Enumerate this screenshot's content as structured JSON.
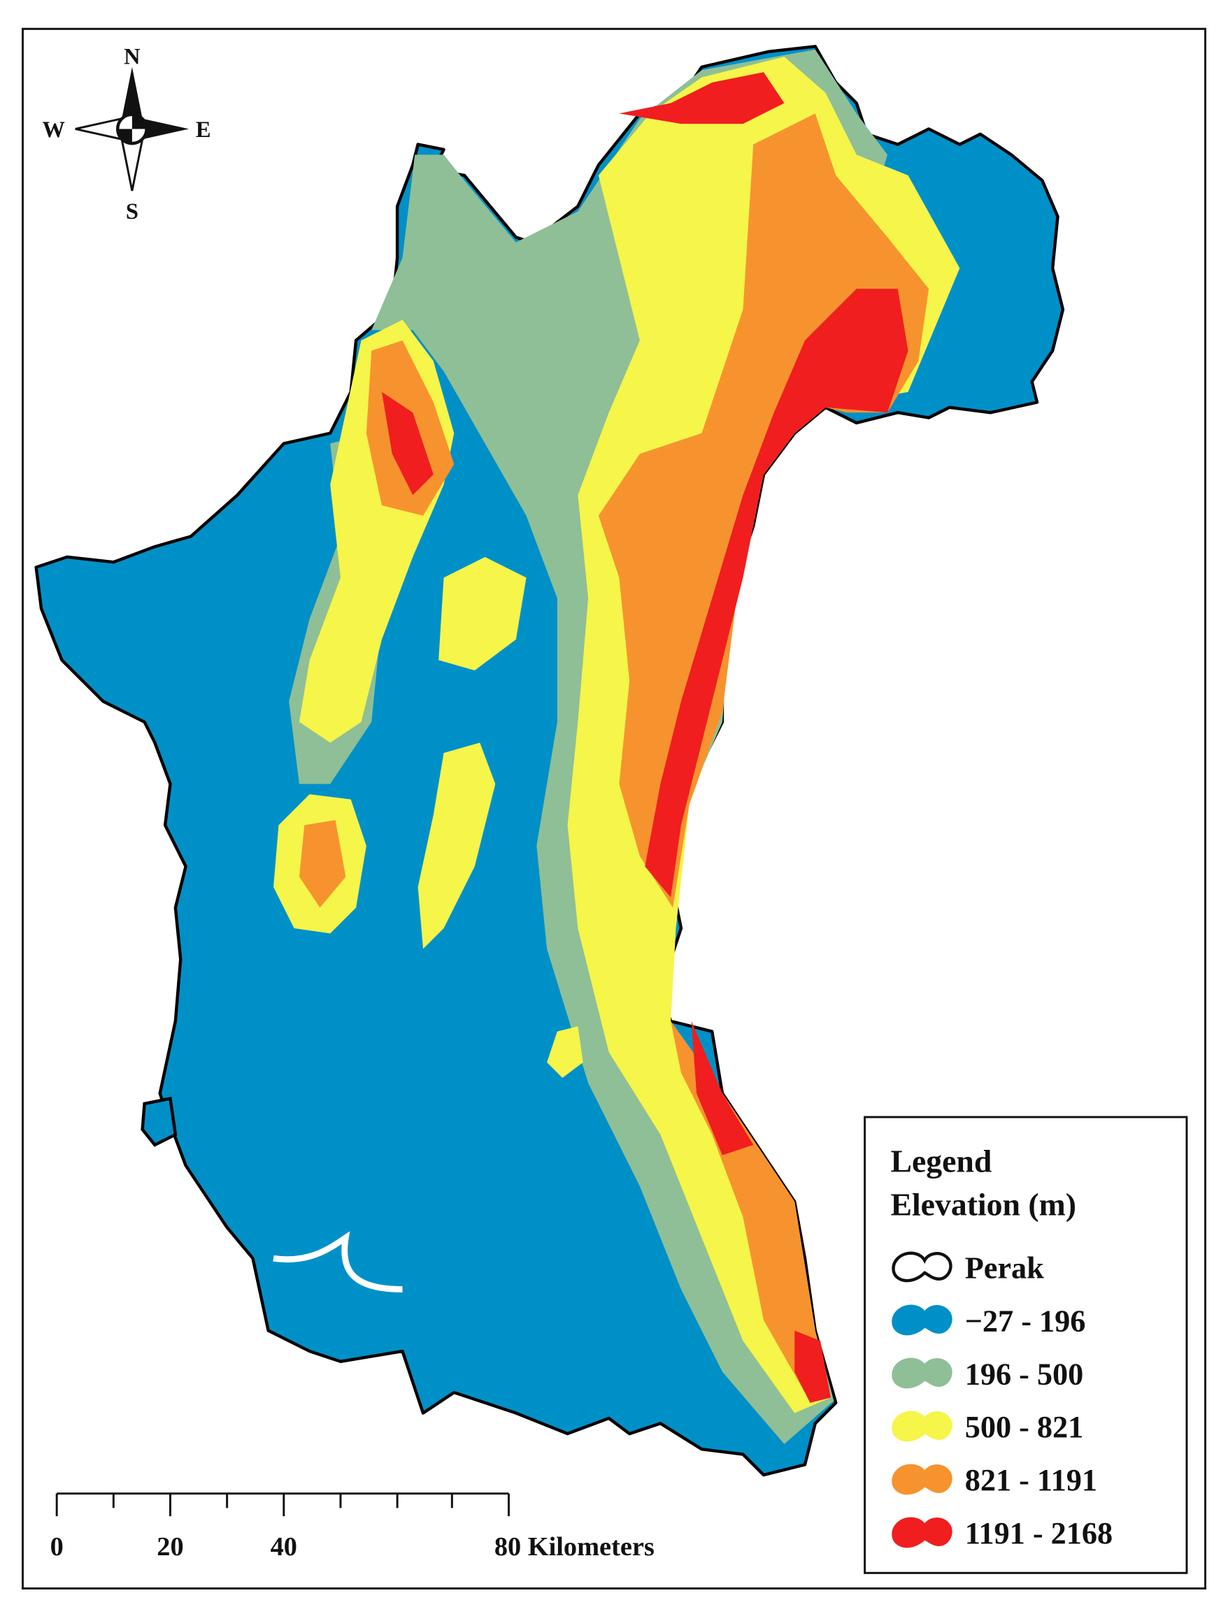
{
  "compass": {
    "north": "N",
    "south": "S",
    "west": "W",
    "east": "E"
  },
  "legend": {
    "title": "Legend",
    "subtitle": "Elevation (m)",
    "items": [
      {
        "label": "Perak",
        "color": "#ffffff"
      },
      {
        "label": "−27 - 196",
        "color": "#0090c8"
      },
      {
        "label": "196 - 500",
        "color": "#8fbf96"
      },
      {
        "label": "500 - 821",
        "color": "#f5f54a"
      },
      {
        "label": "821 - 1191",
        "color": "#f7932e"
      },
      {
        "label": "1191 - 2168",
        "color": "#f01e1e"
      }
    ]
  },
  "scale_bar": {
    "labels": [
      "0",
      "20",
      "40",
      "80 Kilometers"
    ]
  }
}
